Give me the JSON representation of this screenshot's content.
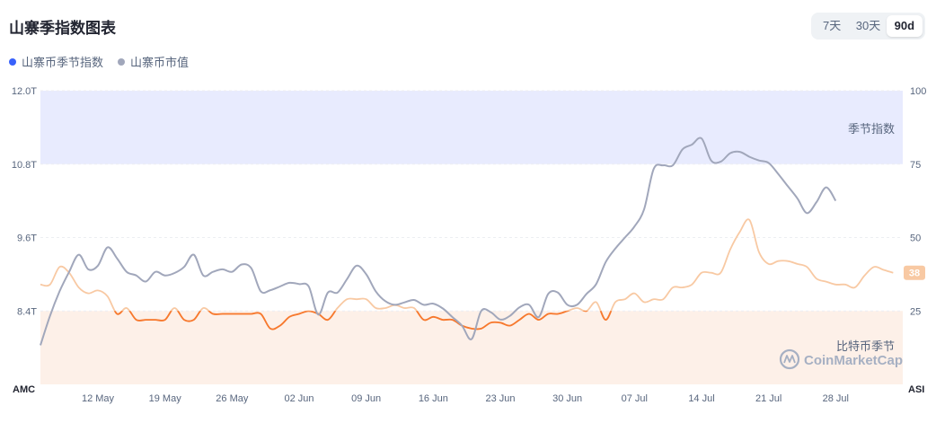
{
  "title": "山寨季指数图表",
  "range_buttons": [
    {
      "label": "7天",
      "active": false
    },
    {
      "label": "30天",
      "active": false
    },
    {
      "label": "90d",
      "active": true
    }
  ],
  "legend": [
    {
      "label": "山寨币季节指数",
      "color": "#3861fb"
    },
    {
      "label": "山寨币市值",
      "color": "#a1a7bb"
    }
  ],
  "watermark": "CoinMarketCap",
  "chart_data": {
    "type": "line",
    "left_axis": {
      "name": "AMC",
      "ticks": [
        "12.0T",
        "10.8T",
        "9.6T",
        "8.4T"
      ],
      "range": [
        7.2,
        12.0
      ]
    },
    "right_axis": {
      "name": "ASI",
      "ticks": [
        "100",
        "75",
        "50",
        "25"
      ],
      "range": [
        0,
        100
      ]
    },
    "x_ticks": [
      "12 May",
      "19 May",
      "26 May",
      "02 Jun",
      "09 Jun",
      "16 Jun",
      "23 Jun",
      "30 Jun",
      "07 Jul",
      "14 Jul",
      "21 Jul",
      "28 Jul"
    ],
    "x_range": [
      0,
      90
    ],
    "x_tick_positions": [
      6,
      13,
      20,
      27,
      34,
      41,
      48,
      55,
      62,
      69,
      76,
      83
    ],
    "zones": [
      {
        "label": "季节指数",
        "from": 75,
        "to": 100,
        "color": "#e8ebfe"
      },
      {
        "label": "比特币季节",
        "from": 0,
        "to": 25,
        "color": "#fdf0e8"
      }
    ],
    "current_index_label": "38",
    "current_index_color": "#f8c9a3",
    "series": [
      {
        "name": "山寨币市值",
        "axis": "left",
        "color": "#a1a7bb",
        "points": [
          [
            0,
            7.84
          ],
          [
            1,
            8.32
          ],
          [
            2,
            8.72
          ],
          [
            3,
            9.04
          ],
          [
            4,
            9.32
          ],
          [
            5,
            9.08
          ],
          [
            6,
            9.14
          ],
          [
            7,
            9.44
          ],
          [
            8,
            9.26
          ],
          [
            9,
            9.04
          ],
          [
            10,
            8.98
          ],
          [
            11,
            8.88
          ],
          [
            12,
            9.04
          ],
          [
            13,
            8.98
          ],
          [
            14,
            9.02
          ],
          [
            15,
            9.12
          ],
          [
            16,
            9.32
          ],
          [
            17,
            8.98
          ],
          [
            18,
            9.04
          ],
          [
            19,
            9.08
          ],
          [
            20,
            9.04
          ],
          [
            21,
            9.16
          ],
          [
            22,
            9.1
          ],
          [
            23,
            8.72
          ],
          [
            24,
            8.74
          ],
          [
            25,
            8.8
          ],
          [
            26,
            8.86
          ],
          [
            27,
            8.84
          ],
          [
            28,
            8.8
          ],
          [
            29,
            8.34
          ],
          [
            30,
            8.7
          ],
          [
            31,
            8.7
          ],
          [
            32,
            8.92
          ],
          [
            33,
            9.14
          ],
          [
            34,
            9.0
          ],
          [
            35,
            8.72
          ],
          [
            36,
            8.56
          ],
          [
            37,
            8.5
          ],
          [
            38,
            8.54
          ],
          [
            39,
            8.58
          ],
          [
            40,
            8.5
          ],
          [
            41,
            8.52
          ],
          [
            42,
            8.44
          ],
          [
            43,
            8.3
          ],
          [
            44,
            8.16
          ],
          [
            45,
            7.94
          ],
          [
            46,
            8.4
          ],
          [
            47,
            8.38
          ],
          [
            48,
            8.26
          ],
          [
            49,
            8.32
          ],
          [
            50,
            8.46
          ],
          [
            51,
            8.5
          ],
          [
            52,
            8.3
          ],
          [
            53,
            8.68
          ],
          [
            54,
            8.7
          ],
          [
            55,
            8.5
          ],
          [
            56,
            8.5
          ],
          [
            57,
            8.68
          ],
          [
            58,
            8.84
          ],
          [
            59,
            9.2
          ],
          [
            60,
            9.42
          ],
          [
            61,
            9.6
          ],
          [
            62,
            9.78
          ],
          [
            63,
            10.06
          ],
          [
            64,
            10.72
          ],
          [
            65,
            10.78
          ],
          [
            66,
            10.78
          ],
          [
            67,
            11.04
          ],
          [
            68,
            11.12
          ],
          [
            69,
            11.22
          ],
          [
            70,
            10.86
          ],
          [
            71,
            10.84
          ],
          [
            72,
            10.98
          ],
          [
            73,
            11.0
          ],
          [
            74,
            10.92
          ],
          [
            75,
            10.86
          ],
          [
            76,
            10.82
          ],
          [
            77,
            10.64
          ],
          [
            78,
            10.44
          ],
          [
            79,
            10.24
          ],
          [
            80,
            10.0
          ],
          [
            81,
            10.18
          ],
          [
            82,
            10.42
          ],
          [
            83,
            10.2
          ]
        ]
      },
      {
        "name": "山寨币季节指数",
        "axis": "right",
        "color": "#f8c9a3",
        "highlight_color": "#f7782d",
        "highlight_below": 25,
        "points": [
          [
            0,
            34
          ],
          [
            1,
            34
          ],
          [
            2,
            40
          ],
          [
            3,
            38
          ],
          [
            4,
            33
          ],
          [
            5,
            31
          ],
          [
            6,
            32
          ],
          [
            7,
            30
          ],
          [
            8,
            24
          ],
          [
            9,
            26
          ],
          [
            10,
            22
          ],
          [
            11,
            22
          ],
          [
            12,
            22
          ],
          [
            13,
            22
          ],
          [
            14,
            26
          ],
          [
            15,
            22
          ],
          [
            16,
            22
          ],
          [
            17,
            26
          ],
          [
            18,
            24
          ],
          [
            19,
            24
          ],
          [
            20,
            24
          ],
          [
            21,
            24
          ],
          [
            22,
            24
          ],
          [
            23,
            24
          ],
          [
            24,
            19
          ],
          [
            25,
            20
          ],
          [
            26,
            23
          ],
          [
            27,
            24
          ],
          [
            28,
            25
          ],
          [
            29,
            24
          ],
          [
            30,
            22
          ],
          [
            31,
            26
          ],
          [
            32,
            29
          ],
          [
            33,
            29
          ],
          [
            34,
            29
          ],
          [
            35,
            26
          ],
          [
            36,
            26
          ],
          [
            37,
            27
          ],
          [
            38,
            26
          ],
          [
            39,
            26
          ],
          [
            40,
            22
          ],
          [
            41,
            23
          ],
          [
            42,
            22
          ],
          [
            43,
            22
          ],
          [
            44,
            20
          ],
          [
            45,
            19
          ],
          [
            46,
            19
          ],
          [
            47,
            21
          ],
          [
            48,
            21
          ],
          [
            49,
            20
          ],
          [
            50,
            22
          ],
          [
            51,
            24
          ],
          [
            52,
            22
          ],
          [
            53,
            24
          ],
          [
            54,
            24
          ],
          [
            55,
            25
          ],
          [
            56,
            26
          ],
          [
            57,
            25
          ],
          [
            58,
            28
          ],
          [
            59,
            22
          ],
          [
            60,
            28
          ],
          [
            61,
            29
          ],
          [
            62,
            31
          ],
          [
            63,
            28
          ],
          [
            64,
            29
          ],
          [
            65,
            29
          ],
          [
            66,
            33
          ],
          [
            67,
            33
          ],
          [
            68,
            34
          ],
          [
            69,
            38
          ],
          [
            70,
            38
          ],
          [
            71,
            38
          ],
          [
            72,
            46
          ],
          [
            73,
            52
          ],
          [
            74,
            56
          ],
          [
            75,
            45
          ],
          [
            76,
            41
          ],
          [
            77,
            42
          ],
          [
            78,
            42
          ],
          [
            79,
            41
          ],
          [
            80,
            40
          ],
          [
            81,
            36
          ],
          [
            82,
            35
          ],
          [
            83,
            34
          ],
          [
            84,
            34
          ],
          [
            85,
            33
          ],
          [
            86,
            37
          ],
          [
            87,
            40
          ],
          [
            88,
            39
          ],
          [
            89,
            38
          ]
        ]
      }
    ]
  }
}
